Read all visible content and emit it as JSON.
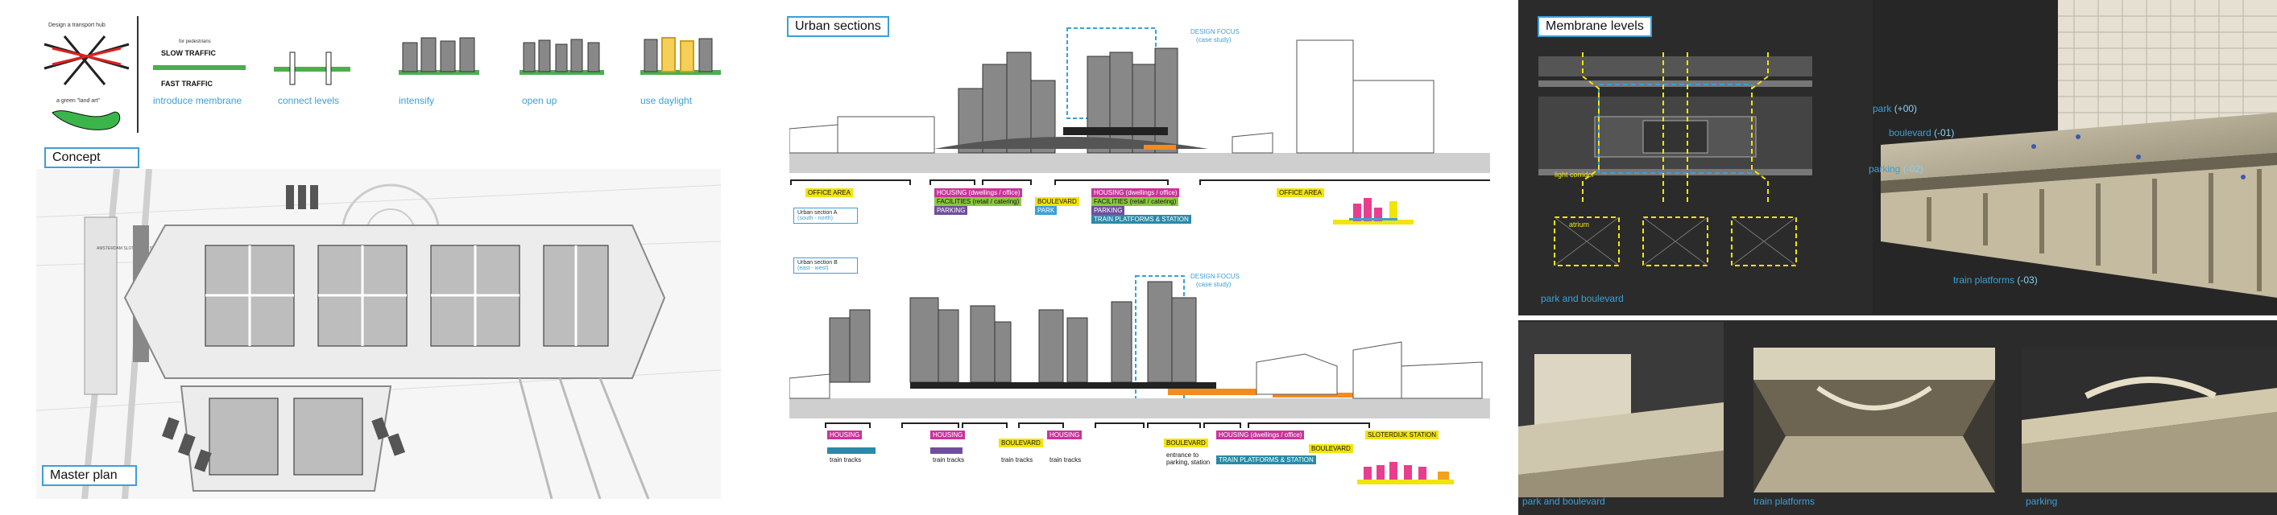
{
  "concept": {
    "title": "Concept",
    "sketch_note_top": "Design a transport hub",
    "sketch_note_bottom": "a green \"land art\"",
    "slow_traffic": "SLOW TRAFFIC",
    "fast_traffic": "FAST TRAFFIC",
    "for_pedestrians": "for pedestrians",
    "steps": [
      "introduce membrane",
      "connect levels",
      "intensify",
      "open up",
      "use daylight"
    ]
  },
  "masterplan": {
    "title": "Master plan",
    "station_label": "AMSTERDAM SLOTERDIJK STATION"
  },
  "sections": {
    "title": "Urban sections",
    "focus_top": "DESIGN FOCUS",
    "focus_sub": "(case study)",
    "section_a_title": "Urban section A",
    "section_a_sub": "(south - north)",
    "section_b_title": "Urban section B",
    "section_b_sub": "(east - west)",
    "office_area": "OFFICE AREA",
    "a_labels": {
      "housing": "HOUSING (dwellings / office)",
      "facilities": "FACILITIES (retail / catering)",
      "parking": "PARKING",
      "boulevard": "BOULEVARD",
      "park": "PARK",
      "platforms": "TRAIN PLATFORMS & STATION"
    },
    "b_labels": {
      "housing": "HOUSING",
      "housing_ext": "HOUSING (dwellings / office)",
      "boulevard": "BOULEVARD",
      "train_tracks": "train tracks",
      "entrance": "entrance to parking, station",
      "station": "SLOTERDIJK STATION",
      "platforms": "TRAIN PLATFORMS & STATION"
    }
  },
  "membrane": {
    "title": "Membrane levels",
    "light_corridor": "light corridor",
    "atrium": "atrium",
    "park_boulevard": "park and boulevard",
    "park": "park",
    "park_level": "(+00)",
    "boulevard": "boulevard",
    "boulevard_level": "(-01)",
    "parking": "parking",
    "parking_level": "(-02)",
    "platforms": "train platforms",
    "platforms_level": "(-03)"
  },
  "photos": {
    "captions": [
      "park and boulevard",
      "train platforms",
      "parking"
    ]
  }
}
